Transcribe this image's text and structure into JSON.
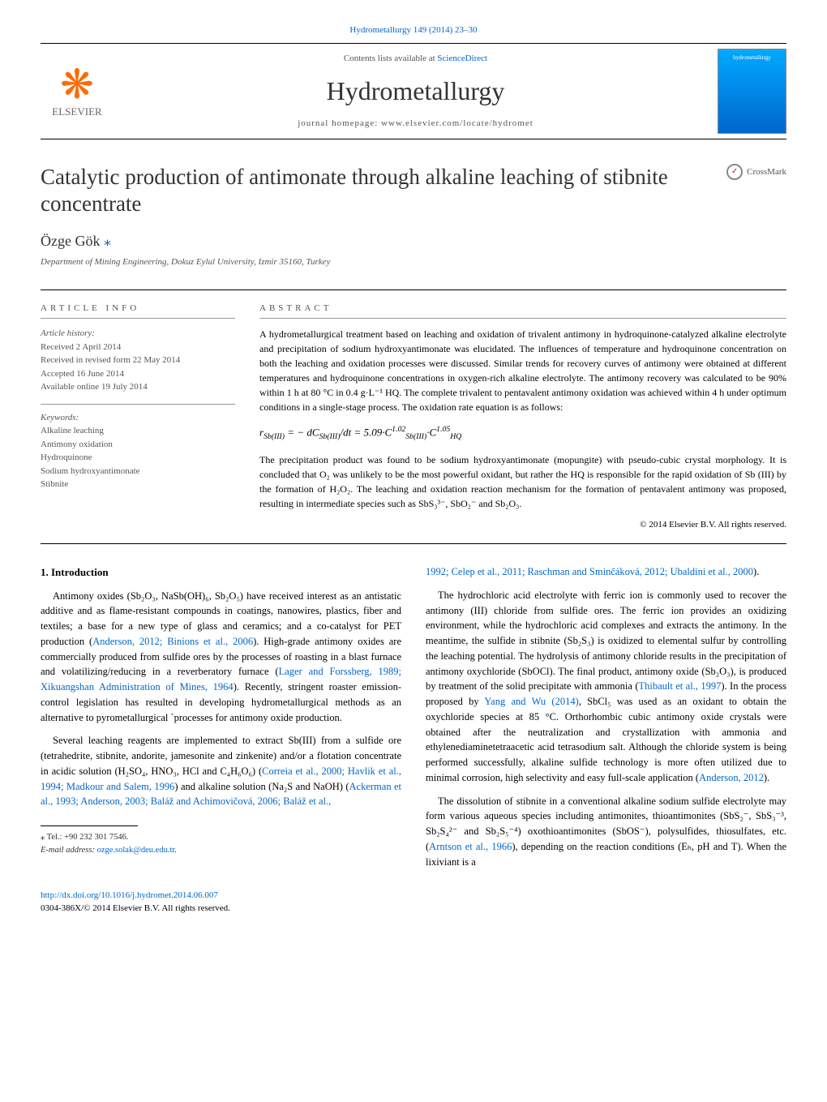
{
  "header": {
    "citation": "Hydrometallurgy 149 (2014) 23–30",
    "sciencedirect_prefix": "Contents lists available at ",
    "sciencedirect": "ScienceDirect",
    "journal": "Hydrometallurgy",
    "homepage": "journal homepage: www.elsevier.com/locate/hydromet",
    "elsevier": "ELSEVIER",
    "cover_label": "hydrometallurgy"
  },
  "title": "Catalytic production of antimonate through alkaline leaching of stibnite concentrate",
  "crossmark": "CrossMark",
  "author": "Özge Gök",
  "author_mark": "⁎",
  "affiliation": "Department of Mining Engineering, Dokuz Eylul University, Izmir 35160, Turkey",
  "article_info": {
    "heading": "ARTICLE INFO",
    "history_label": "Article history:",
    "received": "Received 2 April 2014",
    "revised": "Received in revised form 22 May 2014",
    "accepted": "Accepted 16 June 2014",
    "online": "Available online 19 July 2014",
    "keywords_label": "Keywords:",
    "keywords": [
      "Alkaline leaching",
      "Antimony oxidation",
      "Hydroquinone",
      "Sodium hydroxyantimonate",
      "Stibnite"
    ]
  },
  "abstract": {
    "heading": "ABSTRACT",
    "p1": "A hydrometallurgical treatment based on leaching and oxidation of trivalent antimony in hydroquinone-catalyzed alkaline electrolyte and precipitation of sodium hydroxyantimonate was elucidated. The influences of temperature and hydroquinone concentration on both the leaching and oxidation processes were discussed. Similar trends for recovery curves of antimony were obtained at different temperatures and hydroquinone concentrations in oxygen-rich alkaline electrolyte. The antimony recovery was calculated to be 90% within 1 h at 80 °C in 0.4 g·L⁻¹ HQ. The complete trivalent to pentavalent antimony oxidation was achieved within 4 h under optimum conditions in a single-stage process. The oxidation rate equation is as follows:",
    "equation_html": "r<sub>Sb(III)</sub> = − dC<sub>Sb(III)</sub>/dt = 5.09·C<sup>1.02</sup><sub>Sb(III)</sub>·C<sup>1.05</sup><sub>HQ</sub>",
    "p2": "The precipitation product was found to be sodium hydroxyantimonate (mopungite) with pseudo-cubic crystal morphology. It is concluded that O₂ was unlikely to be the most powerful oxidant, but rather the HQ is responsible for the rapid oxidation of Sb (III) by the formation of H₂O₂. The leaching and oxidation reaction mechanism for the formation of pentavalent antimony was proposed, resulting in intermediate species such as SbS₃³⁻, SbO₂⁻ and Sb₂O₃.",
    "copyright": "© 2014 Elsevier B.V. All rights reserved."
  },
  "intro": {
    "title": "1. Introduction",
    "p1_a": "Antimony oxides (Sb₂O₃, NaSb(OH)₆, Sb₂O₅) have received interest as an antistatic additive and as flame-resistant compounds in coatings, nanowires, plastics, fiber and textiles; a base for a new type of glass and ceramics; and a co-catalyst for PET production (",
    "p1_ref1": "Anderson, 2012; Binions et al., 2006",
    "p1_b": "). High-grade antimony oxides are commercially produced from sulfide ores by the processes of roasting in a blast furnace and volatilizing/reducing in a reverberatory furnace (",
    "p1_ref2": "Lager and Forssberg, 1989; Xikuangshan Administration of Mines, 1964",
    "p1_c": "). Recently, stringent roaster emission-control legislation has resulted in developing hydrometallurgical methods as an alternative to pyrometallurgical `processes for antimony oxide production.",
    "p2_a": "Several leaching reagents are implemented to extract Sb(III) from a sulfide ore (tetrahedrite, stibnite, andorite, jamesonite and zinkenite) and/or a flotation concentrate in acidic solution (H₂SO₄, HNO₃, HCl and C₄H₆O₆) (",
    "p2_ref1": "Correia et al., 2000; Havlik et al., 1994; Madkour and Salem, 1996",
    "p2_b": ") and alkaline solution (Na₂S and NaOH) (",
    "p2_ref2": "Ackerman et al., 1993; Anderson, 2003; Baláž and Achimovičová, 2006; Baláž et al.,",
    "p2_ref2b": "1992; Celep et al., 2011; Raschman and Sminčáková, 2012; Ubaldini et al., 2000",
    "p2_c": ").",
    "p3_a": "The hydrochloric acid electrolyte with ferric ion is commonly used to recover the antimony (III) chloride from sulfide ores. The ferric ion provides an oxidizing environment, while the hydrochloric acid complexes and extracts the antimony. In the meantime, the sulfide in stibnite (Sb₂S₃) is oxidized to elemental sulfur by controlling the leaching potential. The hydrolysis of antimony chloride results in the precipitation of antimony oxychloride (SbOCl). The final product, antimony oxide (Sb₂O₃), is produced by treatment of the solid precipitate with ammonia (",
    "p3_ref1": "Thibault et al., 1997",
    "p3_b": "). In the process proposed by ",
    "p3_ref2": "Yang and Wu (2014)",
    "p3_c": ", SbCl₅ was used as an oxidant to obtain the oxychloride species at 85 °C. Orthorhombic cubic antimony oxide crystals were obtained after the neutralization and crystallization with ammonia and ethylenediaminetetraacetic acid tetrasodium salt. Although the chloride system is being performed successfully, alkaline sulfide technology is more often utilized due to minimal corrosion, high selectivity and easy full-scale application (",
    "p3_ref3": "Anderson, 2012",
    "p3_d": ").",
    "p4_a": "The dissolution of stibnite in a conventional alkaline sodium sulfide electrolyte may form various aqueous species including antimonites, thioantimonites (SbS₂⁻, SbS₃⁻³, Sb₂S₄²⁻ and Sb₂S₅⁻⁴) oxothioantimonites (SbOS⁻), polysulfides, thiosulfates, etc. (",
    "p4_ref1": "Arntson et al., 1966",
    "p4_b": "), depending on the reaction conditions (Eₕ, pH and T). When the lixiviant is a"
  },
  "footnote": {
    "tel": "⁎ Tel.: +90 232 301 7546.",
    "email_label": "E-mail address: ",
    "email": "ozge.solak@deu.edu.tr",
    "period": "."
  },
  "footer": {
    "doi": "http://dx.doi.org/10.1016/j.hydromet.2014.06.007",
    "rights": "0304-386X/© 2014 Elsevier B.V. All rights reserved."
  }
}
